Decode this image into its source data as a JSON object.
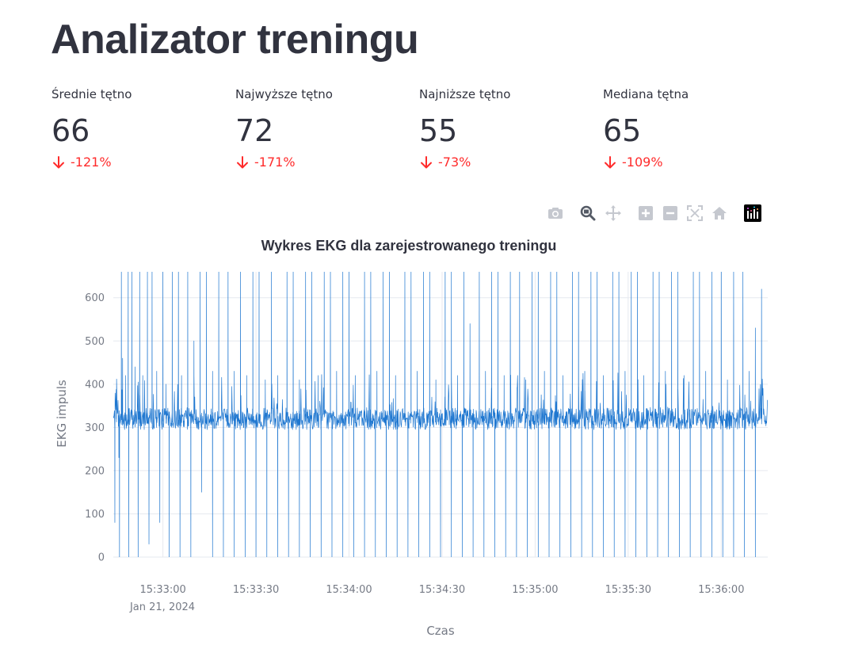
{
  "page": {
    "title": "Analizator treningu"
  },
  "metrics": [
    {
      "label": "Średnie tętno",
      "value": "66",
      "delta": "-121%"
    },
    {
      "label": "Najwyższe tętno",
      "value": "72",
      "delta": "-171%"
    },
    {
      "label": "Najniższe tętno",
      "value": "55",
      "delta": "-73%"
    },
    {
      "label": "Mediana tętna",
      "value": "65",
      "delta": "-109%"
    }
  ],
  "colors": {
    "text": "#31333f",
    "delta_negative": "#ff2b2b",
    "series": "#1f77d0",
    "grid": "#e6e9ef",
    "axis_text": "#757a85"
  },
  "modebar": [
    "camera-icon",
    "zoom-icon",
    "pan-icon",
    "zoom-in-icon",
    "zoom-out-icon",
    "autoscale-icon",
    "reset-axes-icon",
    "plotly-logo-icon"
  ],
  "chart_data": {
    "type": "line",
    "title": "Wykres EKG dla zarejestrowanego treningu",
    "xlabel": "Czas",
    "ylabel": "EKG impuls",
    "x_range": [
      "2024-01-21T15:32:44",
      "2024-01-21T15:36:15"
    ],
    "ylim": [
      0,
      660
    ],
    "yticks": [
      0,
      100,
      200,
      300,
      400,
      500,
      600
    ],
    "xticks": [
      "15:33:00",
      "15:33:30",
      "15:34:00",
      "15:34:30",
      "15:35:00",
      "15:35:30",
      "15:36:00"
    ],
    "x_date_label": "Jan 21, 2024",
    "grid": true,
    "series": [
      {
        "color": "#1f77d0",
        "baseline": 320,
        "noise": 25,
        "peaks": [
          [
            "15:32:45",
            360
          ],
          [
            "15:32:45.8",
            230
          ],
          [
            "15:32:46.6",
            660
          ],
          [
            "15:32:47",
            460
          ],
          [
            "15:32:48",
            420
          ],
          [
            "15:32:48.8",
            660
          ],
          [
            "15:32:50",
            660
          ],
          [
            "15:32:51",
            440
          ],
          [
            "15:32:52.5",
            660
          ],
          [
            "15:32:53.5",
            420
          ],
          [
            "15:32:55",
            660
          ],
          [
            "15:32:56.5",
            660
          ],
          [
            "15:32:58",
            430
          ],
          [
            "15:33:00",
            660
          ],
          [
            "15:33:01",
            400
          ],
          [
            "15:33:03",
            660
          ],
          [
            "15:33:05",
            660
          ],
          [
            "15:33:06",
            420
          ],
          [
            "15:33:08",
            660
          ],
          [
            "15:33:10",
            500
          ],
          [
            "15:33:12",
            660
          ],
          [
            "15:33:14",
            660
          ],
          [
            "15:33:16",
            430
          ],
          [
            "15:33:18",
            660
          ],
          [
            "15:33:21",
            660
          ],
          [
            "15:33:23",
            430
          ],
          [
            "15:33:25",
            660
          ],
          [
            "15:33:27",
            420
          ],
          [
            "15:33:29",
            660
          ],
          [
            "15:33:31",
            660
          ],
          [
            "15:33:33",
            410
          ],
          [
            "15:33:35",
            660
          ],
          [
            "15:33:37",
            420
          ],
          [
            "15:33:40",
            660
          ],
          [
            "15:33:42",
            660
          ],
          [
            "15:33:44",
            410
          ],
          [
            "15:33:46",
            660
          ],
          [
            "15:33:48",
            660
          ],
          [
            "15:33:50",
            420
          ],
          [
            "15:33:52",
            660
          ],
          [
            "15:33:54",
            660
          ],
          [
            "15:33:56",
            430
          ],
          [
            "15:33:58",
            660
          ],
          [
            "15:34:00",
            660
          ],
          [
            "15:34:02",
            420
          ],
          [
            "15:34:05",
            660
          ],
          [
            "15:34:07",
            660
          ],
          [
            "15:34:09",
            430
          ],
          [
            "15:34:11",
            660
          ],
          [
            "15:34:13",
            660
          ],
          [
            "15:34:15",
            420
          ],
          [
            "15:34:18",
            660
          ],
          [
            "15:34:20",
            660
          ],
          [
            "15:34:22",
            430
          ],
          [
            "15:34:24",
            660
          ],
          [
            "15:34:26",
            660
          ],
          [
            "15:34:28",
            410
          ],
          [
            "15:34:31",
            660
          ],
          [
            "15:34:33",
            660
          ],
          [
            "15:34:35",
            420
          ],
          [
            "15:34:37",
            660
          ],
          [
            "15:34:39",
            540
          ],
          [
            "15:34:42",
            660
          ],
          [
            "15:34:44",
            430
          ],
          [
            "15:34:46",
            660
          ],
          [
            "15:34:48",
            660
          ],
          [
            "15:34:50",
            420
          ],
          [
            "15:34:52",
            660
          ],
          [
            "15:34:55",
            660
          ],
          [
            "15:34:57",
            410
          ],
          [
            "15:34:59",
            660
          ],
          [
            "15:35:01",
            660
          ],
          [
            "15:35:03",
            430
          ],
          [
            "15:35:05",
            660
          ],
          [
            "15:35:07",
            660
          ],
          [
            "15:35:09",
            420
          ],
          [
            "15:35:12",
            660
          ],
          [
            "15:35:14",
            660
          ],
          [
            "15:35:16",
            430
          ],
          [
            "15:35:18",
            660
          ],
          [
            "15:35:20",
            660
          ],
          [
            "15:35:22",
            420
          ],
          [
            "15:35:25",
            660
          ],
          [
            "15:35:27",
            660
          ],
          [
            "15:35:29",
            430
          ],
          [
            "15:35:31",
            660
          ],
          [
            "15:35:33",
            660
          ],
          [
            "15:35:35",
            420
          ],
          [
            "15:35:38",
            660
          ],
          [
            "15:35:40",
            660
          ],
          [
            "15:35:42",
            430
          ],
          [
            "15:35:44",
            660
          ],
          [
            "15:35:46",
            660
          ],
          [
            "15:35:48",
            420
          ],
          [
            "15:35:51",
            660
          ],
          [
            "15:35:53",
            660
          ],
          [
            "15:35:55",
            430
          ],
          [
            "15:35:57",
            660
          ],
          [
            "15:36:00",
            660
          ],
          [
            "15:36:02",
            410
          ],
          [
            "15:36:04",
            660
          ],
          [
            "15:36:07",
            660
          ],
          [
            "15:36:09",
            430
          ],
          [
            "15:36:11",
            530
          ],
          [
            "15:36:13",
            620
          ]
        ],
        "troughs": [
          [
            "15:32:44.5",
            80
          ],
          [
            "15:32:46",
            0
          ],
          [
            "15:32:49",
            0
          ],
          [
            "15:32:52",
            0
          ],
          [
            "15:32:55.5",
            30
          ],
          [
            "15:32:59",
            80
          ],
          [
            "15:33:02",
            0
          ],
          [
            "15:33:05.5",
            0
          ],
          [
            "15:33:09",
            0
          ],
          [
            "15:33:12.5",
            150
          ],
          [
            "15:33:16",
            0
          ],
          [
            "15:33:19.5",
            0
          ],
          [
            "15:33:23",
            0
          ],
          [
            "15:33:26.5",
            0
          ],
          [
            "15:33:30",
            0
          ],
          [
            "15:33:33.5",
            0
          ],
          [
            "15:33:37",
            0
          ],
          [
            "15:33:40.5",
            0
          ],
          [
            "15:33:44",
            0
          ],
          [
            "15:33:47.5",
            0
          ],
          [
            "15:33:51",
            0
          ],
          [
            "15:33:54.5",
            0
          ],
          [
            "15:33:58",
            0
          ],
          [
            "15:34:01.5",
            0
          ],
          [
            "15:34:05",
            0
          ],
          [
            "15:34:08.5",
            0
          ],
          [
            "15:34:12",
            0
          ],
          [
            "15:34:15.5",
            0
          ],
          [
            "15:34:19",
            0
          ],
          [
            "15:34:22.5",
            0
          ],
          [
            "15:34:26",
            0
          ],
          [
            "15:34:29.5",
            0
          ],
          [
            "15:34:33",
            0
          ],
          [
            "15:34:36.5",
            0
          ],
          [
            "15:34:40",
            0
          ],
          [
            "15:34:43.5",
            0
          ],
          [
            "15:34:47",
            0
          ],
          [
            "15:34:50.5",
            0
          ],
          [
            "15:34:54",
            0
          ],
          [
            "15:34:57.5",
            0
          ],
          [
            "15:35:01",
            0
          ],
          [
            "15:35:04.5",
            0
          ],
          [
            "15:35:08",
            0
          ],
          [
            "15:35:11.5",
            0
          ],
          [
            "15:35:15",
            0
          ],
          [
            "15:35:18.5",
            0
          ],
          [
            "15:35:22",
            0
          ],
          [
            "15:35:25.5",
            0
          ],
          [
            "15:35:29",
            0
          ],
          [
            "15:35:32.5",
            0
          ],
          [
            "15:35:36",
            0
          ],
          [
            "15:35:39.5",
            0
          ],
          [
            "15:35:43",
            0
          ],
          [
            "15:35:46.5",
            0
          ],
          [
            "15:35:50",
            0
          ],
          [
            "15:35:53.5",
            0
          ],
          [
            "15:35:57",
            0
          ],
          [
            "15:36:00.5",
            0
          ],
          [
            "15:36:04",
            0
          ],
          [
            "15:36:07.5",
            0
          ],
          [
            "15:36:11",
            0
          ]
        ]
      }
    ]
  }
}
